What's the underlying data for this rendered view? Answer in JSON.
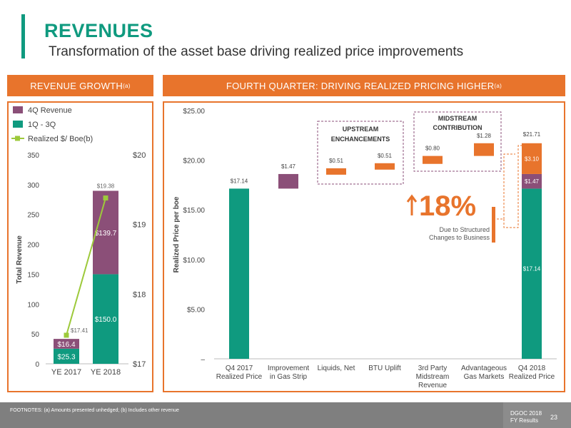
{
  "header": {
    "title": "REVENUES",
    "subtitle": "Transformation of the asset base driving realized price improvements"
  },
  "colors": {
    "teal": "#0f9a7f",
    "purple": "#8b4f78",
    "orange": "#e8742c",
    "green": "#9dc93b"
  },
  "left_panel": {
    "header_text": "REVENUE GROWTH",
    "header_sup": "(a)"
  },
  "right_panel": {
    "header_text": "FOURTH QUARTER: DRIVING REALIZED PRICING HIGHER",
    "header_sup": "(a)"
  },
  "chart_data": [
    {
      "type": "bar",
      "subtype": "stacked-bar-with-line",
      "categories": [
        "YE 2017",
        "YE 2018"
      ],
      "series": [
        {
          "name": "1Q - 3Q",
          "values": [
            25.3,
            150.0
          ],
          "labels": [
            "$25.3",
            "$150.0"
          ],
          "color": "#0f9a7f"
        },
        {
          "name": "4Q Revenue",
          "values": [
            16.4,
            139.7
          ],
          "labels": [
            "$16.4",
            "$139.7"
          ],
          "color": "#8b4f78"
        },
        {
          "name": "Realized $/ Boe(b)",
          "type": "line",
          "axis": "right",
          "values": [
            17.41,
            19.38
          ],
          "labels": [
            "$17.41",
            "$19.38"
          ],
          "color": "#9dc93b"
        }
      ],
      "ylabel": "Total Revenue",
      "ylim": [
        0,
        350
      ],
      "yticks": [
        0,
        50,
        100,
        150,
        200,
        250,
        300,
        350
      ],
      "y2lim": [
        17,
        20
      ],
      "y2ticks": [
        "$17",
        "$18",
        "$19",
        "$20"
      ],
      "legend": "top-left"
    },
    {
      "type": "bar",
      "subtype": "waterfall",
      "ylabel": "Realized Price per boe",
      "ylim": [
        0,
        25
      ],
      "yticks": [
        "–",
        "$5.00",
        "$10.00",
        "$15.00",
        "$20.00",
        "$25.00"
      ],
      "categories": [
        [
          "Q4 2017",
          "Realized Price"
        ],
        [
          "Improvement",
          "in Gas Strip"
        ],
        [
          "Liquids, Net"
        ],
        [
          "BTU Uplift"
        ],
        [
          "3rd Party",
          "Midstream",
          "Revenue"
        ],
        [
          "Advantageous",
          "Gas Markets"
        ],
        [
          "Q4 2018",
          "Realized Price"
        ]
      ],
      "bars": [
        {
          "start": 0,
          "end": 17.14,
          "label": "$17.14",
          "color": "#0f9a7f"
        },
        {
          "start": 17.14,
          "end": 18.61,
          "label": "$1.47",
          "color": "#8b4f78"
        },
        {
          "start": 18.61,
          "end": 19.12,
          "label": "$0.51",
          "color": "#e8742c"
        },
        {
          "start": 19.12,
          "end": 19.63,
          "label": "$0.51",
          "color": "#e8742c"
        },
        {
          "start": 19.63,
          "end": 20.43,
          "label": "$0.80",
          "color": "#e8742c"
        },
        {
          "start": 20.43,
          "end": 21.71,
          "label": "$1.28",
          "color": "#e8742c"
        }
      ],
      "final_stack": {
        "total_label": "$21.71",
        "segments": [
          {
            "value": 17.14,
            "label": "$17.14",
            "color": "#0f9a7f"
          },
          {
            "value": 1.47,
            "label": "$1.47",
            "color": "#8b4f78"
          },
          {
            "value": 3.1,
            "label": "$3.10",
            "color": "#e8742c"
          }
        ]
      },
      "annotations": {
        "upstream": [
          "UPSTREAM",
          "ENCHANCEMENTS"
        ],
        "midstream": [
          "MIDSTREAM",
          "CONTRIBUTION"
        ],
        "growth_value": "18%",
        "growth_note": [
          "Due to Structured",
          "Changes to Business"
        ]
      }
    }
  ],
  "footer": {
    "footnote": "FOOTNOTES: (a) Amounts presented unhedged; (b) Includes other revenue",
    "doc_label": [
      "DGOC 2018",
      "FY Results"
    ],
    "page_number": "23"
  }
}
